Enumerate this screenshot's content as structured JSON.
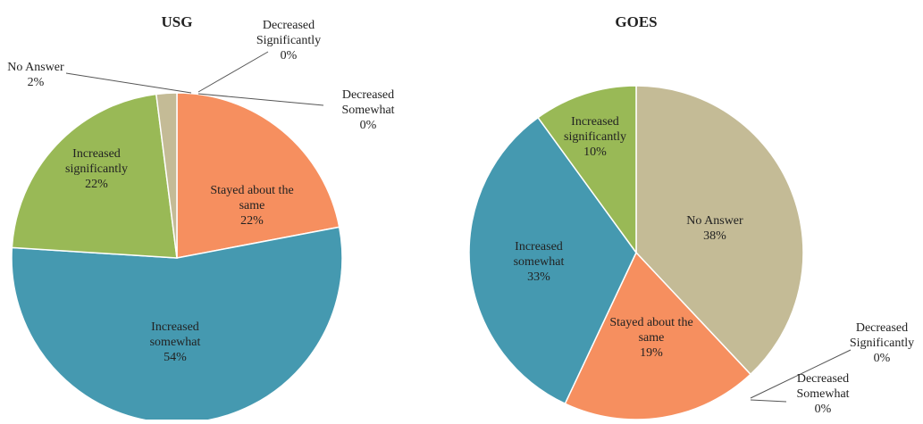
{
  "chart_data": [
    {
      "type": "pie",
      "title": "USG",
      "slices": [
        {
          "key": "stayed",
          "label": [
            "Stayed about the",
            "same"
          ],
          "pct_label": "22%",
          "value": 22,
          "color": "#f68f5f"
        },
        {
          "key": "somewhat",
          "label": [
            "Increased",
            "somewhat"
          ],
          "pct_label": "54%",
          "value": 54,
          "color": "#4599b0"
        },
        {
          "key": "significantly",
          "label": [
            "Increased",
            "significantly"
          ],
          "pct_label": "22%",
          "value": 22,
          "color": "#99b956"
        },
        {
          "key": "noanswer",
          "label": [
            "No Answer"
          ],
          "pct_label": "2%",
          "value": 2,
          "color": "#c4bb96"
        },
        {
          "key": "dec_sig",
          "label": [
            "Decreased",
            "Significantly"
          ],
          "pct_label": "0%",
          "value": 0,
          "color": "#7a5ea0"
        },
        {
          "key": "dec_some",
          "label": [
            "Decreased",
            "Somewhat"
          ],
          "pct_label": "0%",
          "value": 0,
          "color": "#c0504d"
        }
      ]
    },
    {
      "type": "pie",
      "title": "GOES",
      "slices": [
        {
          "key": "noanswer",
          "label": [
            "No Answer"
          ],
          "pct_label": "38%",
          "value": 38,
          "color": "#c4bb96"
        },
        {
          "key": "dec_sig",
          "label": [
            "Decreased",
            "Significantly"
          ],
          "pct_label": "0%",
          "value": 0,
          "color": "#7a5ea0"
        },
        {
          "key": "dec_some",
          "label": [
            "Decreased",
            "Somewhat"
          ],
          "pct_label": "0%",
          "value": 0,
          "color": "#c0504d"
        },
        {
          "key": "stayed",
          "label": [
            "Stayed about the",
            "same"
          ],
          "pct_label": "19%",
          "value": 19,
          "color": "#f68f5f"
        },
        {
          "key": "somewhat",
          "label": [
            "Increased",
            "somewhat"
          ],
          "pct_label": "33%",
          "value": 33,
          "color": "#4599b0"
        },
        {
          "key": "significantly",
          "label": [
            "Increased",
            "significantly"
          ],
          "pct_label": "10%",
          "value": 10,
          "color": "#99b956"
        }
      ]
    }
  ]
}
